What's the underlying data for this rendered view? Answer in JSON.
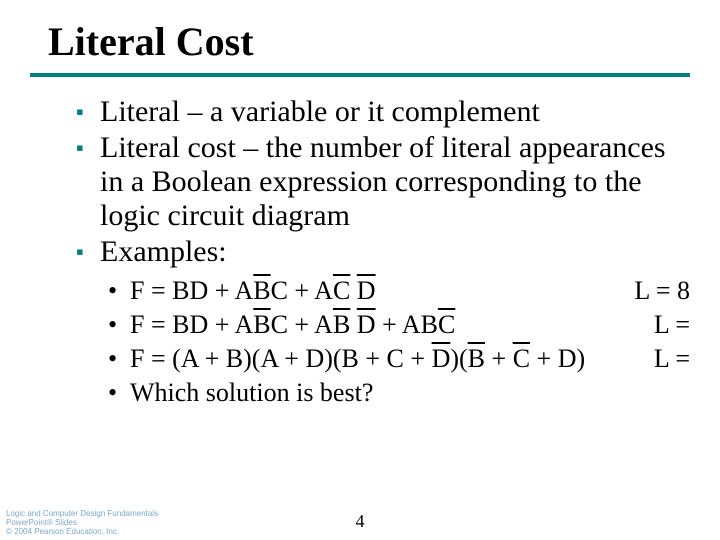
{
  "title": "Literal Cost",
  "rule_color": "#008080",
  "bullet_color": "#008080",
  "bullets": [
    "Literal – a variable or it complement",
    "Literal cost – the number of literal appearances in a Boolean expression corresponding to the logic circuit diagram",
    "Examples:"
  ],
  "examples": [
    {
      "formula_html": "F = BD + A<span class=\"ov\">B</span>C + A<span class=\"ov\">C</span> <span class=\"ov\">D</span>",
      "cost": "L = 8"
    },
    {
      "formula_html": "F = BD + A<span class=\"ov\">B</span>C + A<span class=\"ov\">B</span> <span class=\"ov\">D</span> + AB<span class=\"ov\">C</span>",
      "cost": "L ="
    },
    {
      "formula_html": "F = (A + B)(A + D)(B + C + <span class=\"ov\">D</span>)(<span class=\"ov\">B</span> + <span class=\"ov\">C</span> + D)",
      "cost": "L ="
    },
    {
      "formula_html": "Which solution is best?",
      "cost": ""
    }
  ],
  "footer": {
    "line1": "Logic and Computer Design Fundamentals",
    "line2": "PowerPoint® Slides",
    "line3": "© 2004 Pearson Education, Inc."
  },
  "page_number": "4"
}
